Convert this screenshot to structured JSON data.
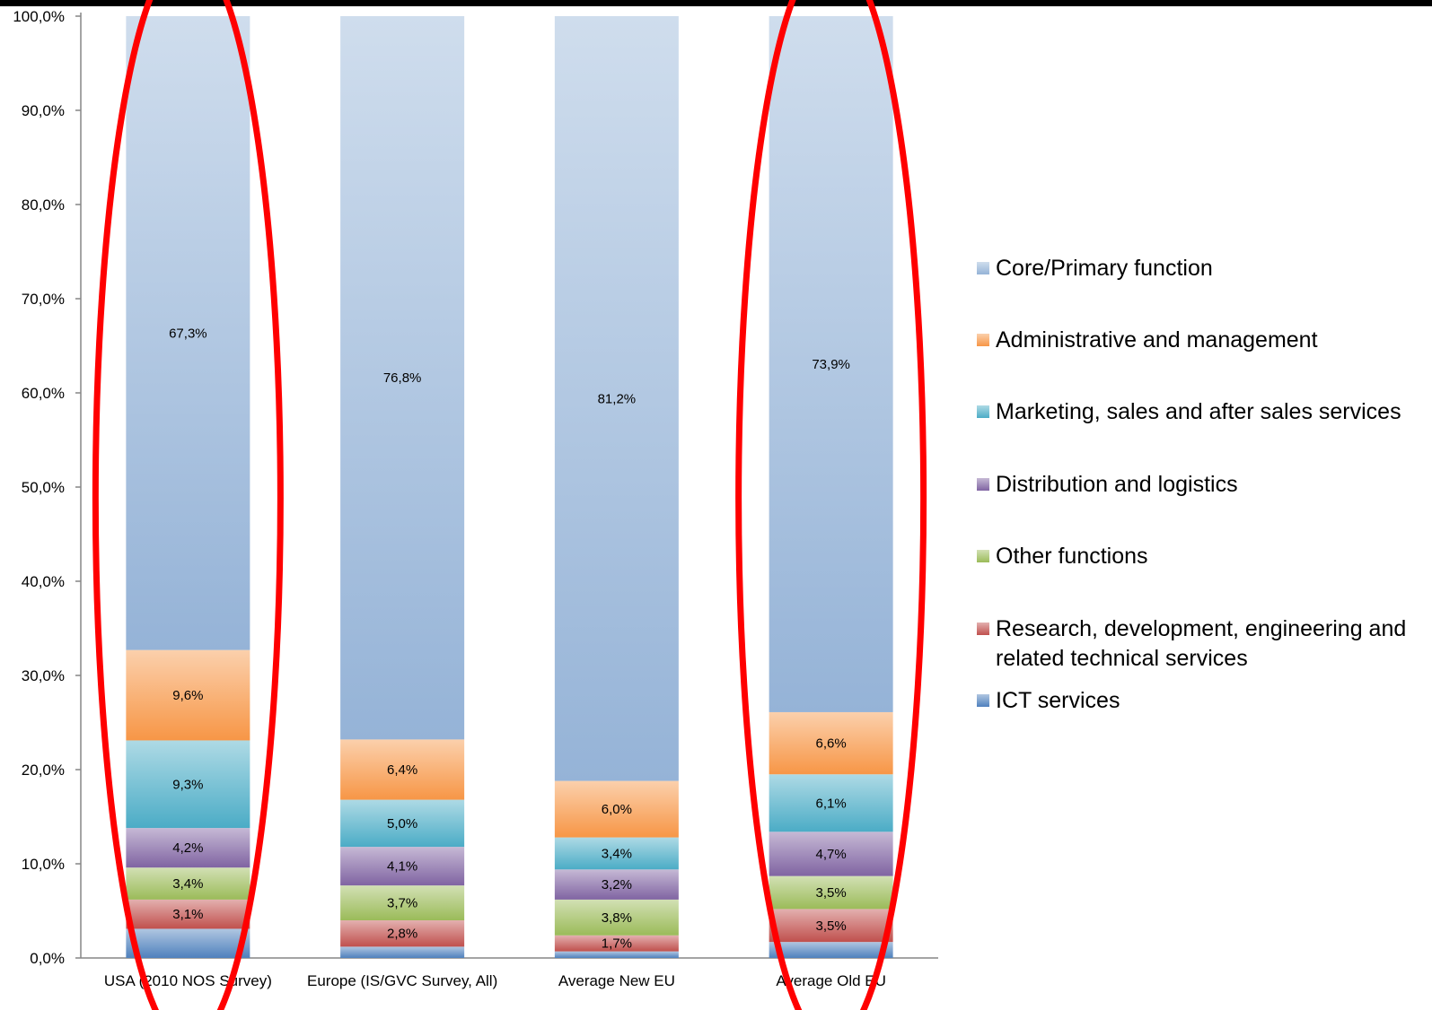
{
  "chart_data": {
    "type": "bar",
    "stacked": true,
    "title": "",
    "xlabel": "",
    "ylabel": "",
    "ylim": [
      0,
      100
    ],
    "yticks": [
      "0,0%",
      "10,0%",
      "20,0%",
      "30,0%",
      "40,0%",
      "50,0%",
      "60,0%",
      "70,0%",
      "80,0%",
      "90,0%",
      "100,0%"
    ],
    "categories": [
      "USA (2010 NOS Survey)",
      "Europe (IS/GVC Survey, All)",
      "Average New EU",
      "Average Old EU"
    ],
    "legend_position": "right",
    "series": [
      {
        "name": "ICT services",
        "color": "#4f81bd",
        "values": [
          3.1,
          1.2,
          0.7,
          1.7
        ],
        "labels": [
          "",
          "",
          "",
          ""
        ]
      },
      {
        "name": "Research, development, engineering and related technical services",
        "color": "#c0504d",
        "values": [
          3.1,
          2.8,
          1.7,
          3.5
        ],
        "labels": [
          "3,1%",
          "2,8%",
          "1,7%",
          "3,5%"
        ]
      },
      {
        "name": "Other functions",
        "color": "#9bbb59",
        "values": [
          3.4,
          3.7,
          3.8,
          3.5
        ],
        "labels": [
          "3,4%",
          "3,7%",
          "3,8%",
          "3,5%"
        ]
      },
      {
        "name": "Distribution and logistics",
        "color": "#8064a2",
        "values": [
          4.2,
          4.1,
          3.2,
          4.7
        ],
        "labels": [
          "4,2%",
          "4,1%",
          "3,2%",
          "4,7%"
        ]
      },
      {
        "name": "Marketing, sales and after sales services",
        "color": "#4bacc6",
        "values": [
          9.3,
          5.0,
          3.4,
          6.1
        ],
        "labels": [
          "9,3%",
          "5,0%",
          "3,4%",
          "6,1%"
        ]
      },
      {
        "name": "Administrative and management",
        "color": "#f79646",
        "values": [
          9.6,
          6.4,
          6.0,
          6.6
        ],
        "labels": [
          "9,6%",
          "6,4%",
          "6,0%",
          "6,6%"
        ]
      },
      {
        "name": "Core/Primary function",
        "color": "#95b3d7",
        "values": [
          67.3,
          76.8,
          81.2,
          73.9
        ],
        "labels": [
          "67,3%",
          "76,8%",
          "81,2%",
          "73,9%"
        ]
      }
    ],
    "legend_order": [
      "Core/Primary function",
      "Administrative and management",
      "Marketing, sales and after sales services",
      "Distribution and logistics",
      "Other functions",
      "Research, development, engineering and related technical services",
      "ICT services"
    ],
    "highlighted_categories": [
      "USA (2010 NOS Survey)",
      "Average Old EU"
    ],
    "highlight_color": "#ff0000"
  }
}
